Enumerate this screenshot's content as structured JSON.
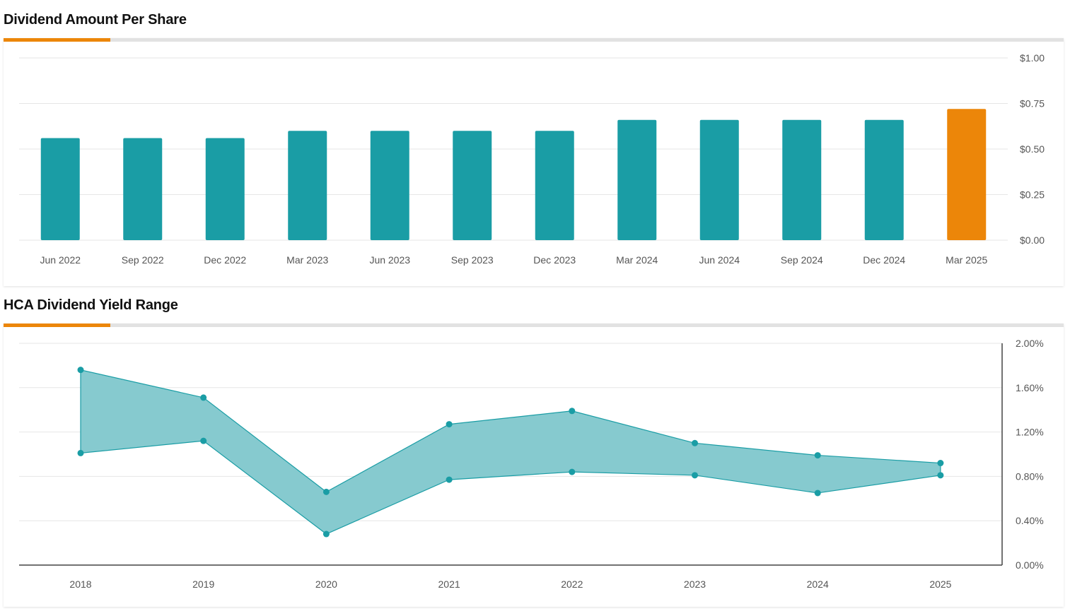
{
  "colors": {
    "accent": "#ec8609",
    "teal": "#1a9da5",
    "band_fill": "#86cacf",
    "band_line": "#1a9da5",
    "grid": "#e6e6e6"
  },
  "chart_data": [
    {
      "type": "bar",
      "title": "Dividend Amount Per Share",
      "categories": [
        "Jun 2022",
        "Sep 2022",
        "Dec 2022",
        "Mar 2023",
        "Jun 2023",
        "Sep 2023",
        "Dec 2023",
        "Mar 2024",
        "Jun 2024",
        "Sep 2024",
        "Dec 2024",
        "Mar 2025"
      ],
      "values": [
        0.56,
        0.56,
        0.56,
        0.6,
        0.6,
        0.6,
        0.6,
        0.66,
        0.66,
        0.66,
        0.66,
        0.72
      ],
      "highlight_index": 11,
      "ylim": [
        0,
        1.0
      ],
      "yticks": [
        "$0.00",
        "$0.25",
        "$0.50",
        "$0.75",
        "$1.00"
      ],
      "ytick_values": [
        0,
        0.25,
        0.5,
        0.75,
        1.0
      ],
      "grid": true,
      "y_axis_side": "right"
    },
    {
      "type": "area",
      "title": "HCA Dividend Yield Range",
      "x": [
        "2018",
        "2019",
        "2020",
        "2021",
        "2022",
        "2023",
        "2024",
        "2025"
      ],
      "series": [
        {
          "values": [
            1.76,
            1.51,
            0.66,
            1.27,
            1.39,
            1.1,
            0.99,
            0.92
          ]
        },
        {
          "values": [
            1.01,
            1.12,
            0.28,
            0.77,
            0.84,
            0.81,
            0.65,
            0.81
          ]
        }
      ],
      "ylim": [
        0,
        2.0
      ],
      "yticks": [
        "0.00%",
        "0.40%",
        "0.80%",
        "1.20%",
        "1.60%",
        "2.00%"
      ],
      "ytick_values": [
        0,
        0.4,
        0.8,
        1.2,
        1.6,
        2.0
      ],
      "grid": true,
      "y_axis_side": "right"
    }
  ]
}
